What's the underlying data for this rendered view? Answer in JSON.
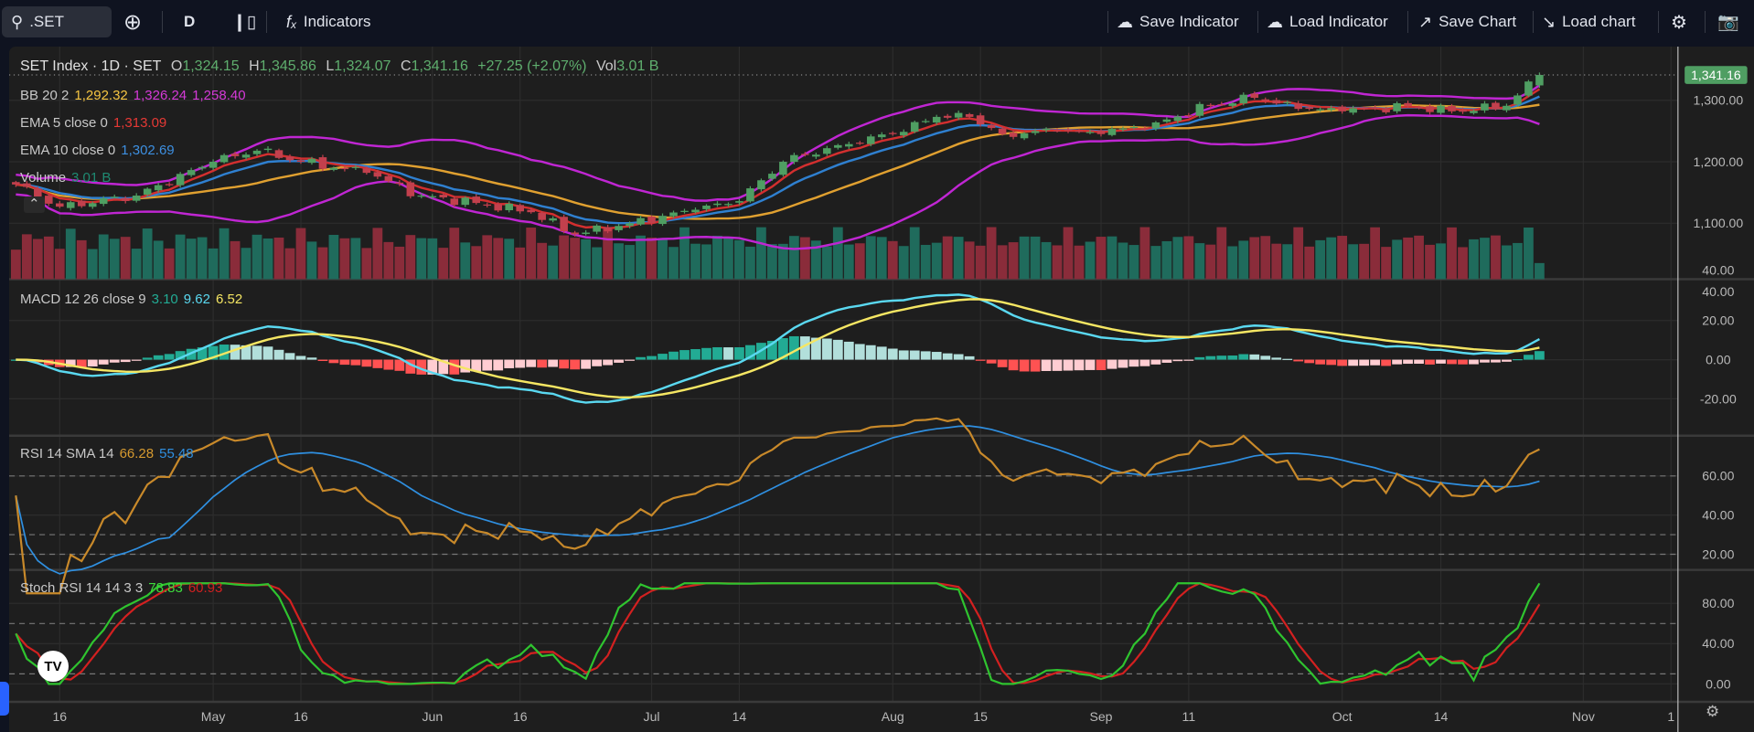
{
  "toolbar": {
    "symbol": ".SET",
    "interval": "D",
    "indicators": "Indicators",
    "save_indicator": "Save Indicator",
    "load_indicator": "Load Indicator",
    "save_chart": "Save Chart",
    "load_chart": "Load chart"
  },
  "legend": {
    "title": "SET Index · 1D · SET",
    "o_label": "O",
    "o": "1,324.15",
    "h_label": "H",
    "h": "1,345.86",
    "l_label": "L",
    "l": "1,324.07",
    "c_label": "C",
    "c": "1,341.16",
    "change": "+27.25 (+2.07%)",
    "vol_label": "Vol",
    "vol": "3.01 B",
    "bb": {
      "name": "BB 20 2",
      "basis": "1,292.32",
      "upper": "1,326.24",
      "lower": "1,258.40"
    },
    "ema5": {
      "name": "EMA 5 close 0",
      "value": "1,313.09"
    },
    "ema10": {
      "name": "EMA 10 close 0",
      "value": "1,302.69"
    },
    "volume": {
      "name": "Volume",
      "value": "3.01 B"
    },
    "macd": {
      "name": "MACD 12 26 close 9",
      "hist": "3.10",
      "macd": "9.62",
      "signal": "6.52"
    },
    "rsi": {
      "name": "RSI 14 SMA 14",
      "rsi": "66.28",
      "sma": "55.48"
    },
    "stoch": {
      "name": "Stoch RSI 14 14 3 3",
      "k": "78.83",
      "d": "60.93"
    }
  },
  "colors": {
    "up": "#4f9e62",
    "down": "#c2404d",
    "vol_up": "#1f6b5c",
    "vol_down": "#8a2c3a",
    "bb_band": "#c026d3",
    "bb_basis": "#e0a030",
    "ema5": "#d32f2f",
    "ema10": "#2f80d0",
    "macd": "#5ad8f0",
    "signal": "#f5e663",
    "rsi": "#c8892a",
    "rsi_sma": "#2f8fe0",
    "stoch_k": "#2fc42f",
    "stoch_d": "#d32020",
    "last_price_bg": "#4f9e62"
  },
  "chart_data": {
    "type": "candlestick",
    "title": "SET Index · 1D · SET",
    "close_keypoints": [
      [
        0,
        1163
      ],
      [
        4,
        1127
      ],
      [
        11,
        1145
      ],
      [
        18,
        1200
      ],
      [
        22,
        1218
      ],
      [
        26,
        1200
      ],
      [
        32,
        1182
      ],
      [
        37,
        1145
      ],
      [
        42,
        1133
      ],
      [
        47,
        1118
      ],
      [
        51,
        1082
      ],
      [
        56,
        1100
      ],
      [
        62,
        1122
      ],
      [
        66,
        1136
      ],
      [
        70,
        1200
      ],
      [
        75,
        1227
      ],
      [
        80,
        1245
      ],
      [
        84,
        1273
      ],
      [
        87,
        1273
      ],
      [
        90,
        1245
      ],
      [
        95,
        1250
      ],
      [
        99,
        1245
      ],
      [
        104,
        1264
      ],
      [
        109,
        1291
      ],
      [
        113,
        1304
      ],
      [
        117,
        1286
      ],
      [
        121,
        1282
      ],
      [
        127,
        1291
      ],
      [
        131,
        1282
      ],
      [
        136,
        1291
      ],
      [
        139,
        1341.16
      ]
    ],
    "bar_count": 140,
    "last_price": "1,341.16",
    "price_axis": {
      "ticks": [
        "1,300.00",
        "1,200.00",
        "1,100.00"
      ],
      "tick_values": [
        1300,
        1200,
        1100
      ],
      "cut_label": "40.00"
    },
    "macd_axis": {
      "ticks": [
        "40.00",
        "20.00",
        "0.00",
        "-20.00"
      ],
      "tick_values": [
        40,
        20,
        0,
        -20
      ]
    },
    "rsi_axis": {
      "ticks": [
        "60.00",
        "40.00",
        "20.00"
      ],
      "tick_values": [
        60,
        40,
        20
      ],
      "levels": [
        60,
        30,
        20
      ]
    },
    "stoch_axis": {
      "ticks": [
        "80.00",
        "40.00",
        "0.00"
      ],
      "tick_values": [
        80,
        40,
        0
      ],
      "levels": [
        60,
        10
      ]
    },
    "time_axis": {
      "labels": [
        "16",
        "May",
        "16",
        "Jun",
        "16",
        "Jul",
        "14",
        "Aug",
        "15",
        "Sep",
        "11",
        "Oct",
        "14",
        "Nov",
        "1"
      ],
      "bar_index": [
        4,
        18,
        26,
        38,
        46,
        58,
        66,
        80,
        88,
        99,
        107,
        121,
        130,
        143,
        151
      ]
    }
  }
}
